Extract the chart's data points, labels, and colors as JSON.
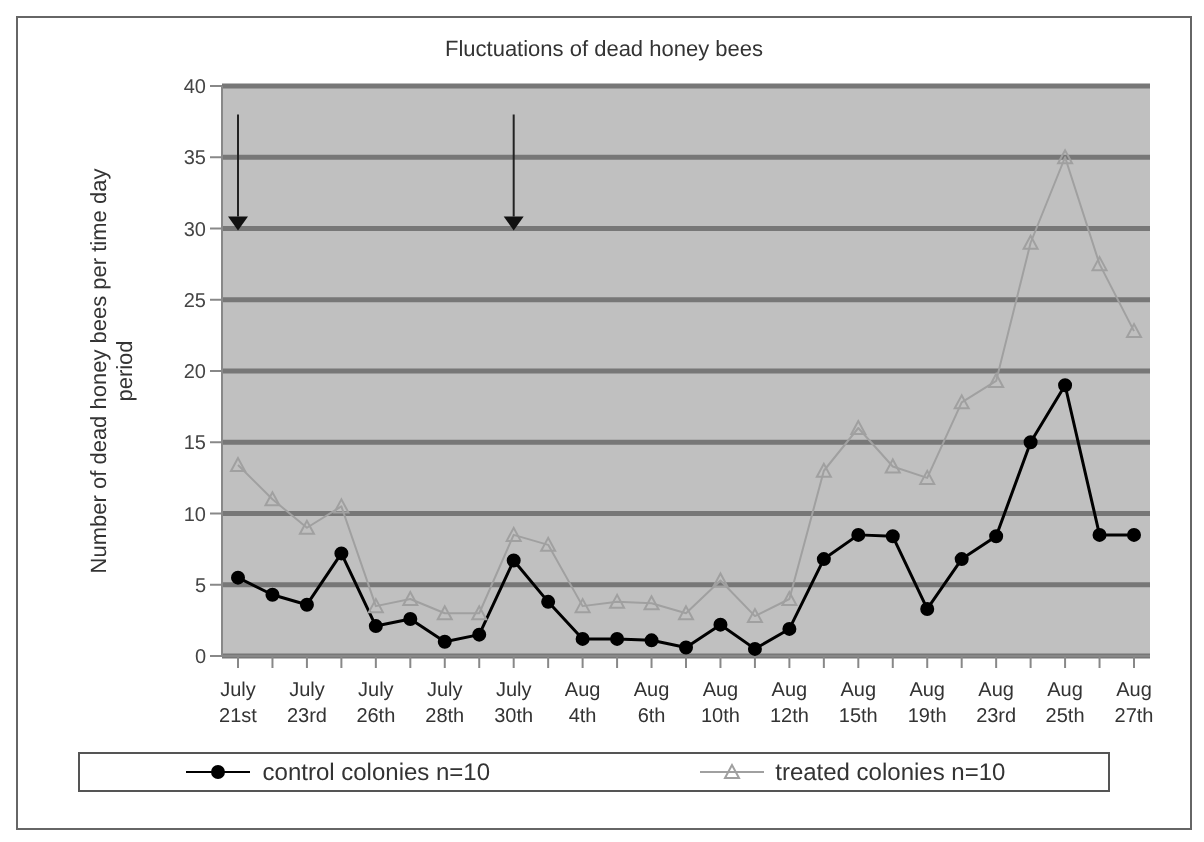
{
  "chart_data": {
    "type": "line",
    "title": "Fluctuations of dead honey bees",
    "ylabel": "Number of dead honey bees per time day period",
    "categories": [
      "July 21st",
      null,
      "July 23rd",
      null,
      "July 26th",
      null,
      "July 28th",
      null,
      "July 30th",
      null,
      "Aug 4th",
      null,
      "Aug 6th",
      null,
      "Aug 10th",
      null,
      "Aug 12th",
      null,
      "Aug 15th",
      null,
      "Aug 19th",
      null,
      "Aug 23rd",
      null,
      "Aug 25th",
      null,
      "Aug 27th"
    ],
    "series": [
      {
        "name": "control colonies n=10",
        "color": "#000000",
        "marker": "circle",
        "values": [
          5.5,
          4.3,
          3.6,
          7.2,
          2.1,
          2.6,
          1.0,
          1.5,
          6.7,
          3.8,
          1.2,
          1.2,
          1.1,
          0.6,
          2.2,
          0.5,
          1.9,
          6.8,
          8.5,
          8.4,
          3.3,
          6.8,
          8.4,
          15,
          19,
          8.5,
          8.5
        ]
      },
      {
        "name": "treated colonies n=10",
        "color": "#a0a0a0",
        "marker": "triangle",
        "values": [
          13.4,
          11,
          9,
          10.5,
          3.5,
          4,
          3,
          3,
          8.5,
          7.8,
          3.5,
          3.8,
          3.7,
          3,
          5.3,
          2.8,
          4,
          13,
          16,
          13.3,
          12.5,
          17.8,
          19.3,
          29,
          35,
          27.5,
          22.8
        ]
      }
    ],
    "ylim": [
      0,
      40
    ],
    "yticks": [
      0,
      5,
      10,
      15,
      20,
      25,
      30,
      35,
      40
    ],
    "grid": "y",
    "legend": "bottom",
    "line_style": "solid"
  }
}
